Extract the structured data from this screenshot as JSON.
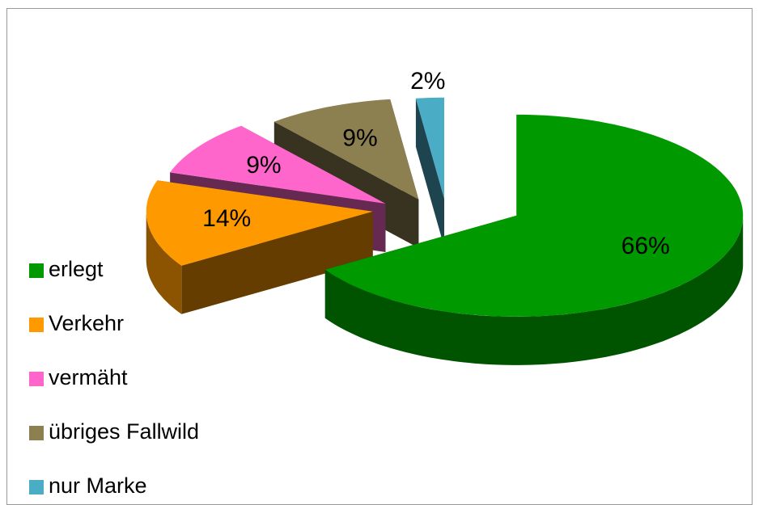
{
  "chart_data": {
    "type": "pie3d",
    "categories": [
      "erlegt",
      "Verkehr",
      "vermäht",
      "übriges Fallwild",
      "nur Marke"
    ],
    "values": [
      66,
      14,
      9,
      9,
      2
    ],
    "value_labels": [
      "66%",
      "14%",
      "9%",
      "9%",
      "2%"
    ],
    "colors": [
      "#009900",
      "#ff9900",
      "#ff66cc",
      "#8c7f50",
      "#4bacc6"
    ],
    "legend": "left"
  }
}
